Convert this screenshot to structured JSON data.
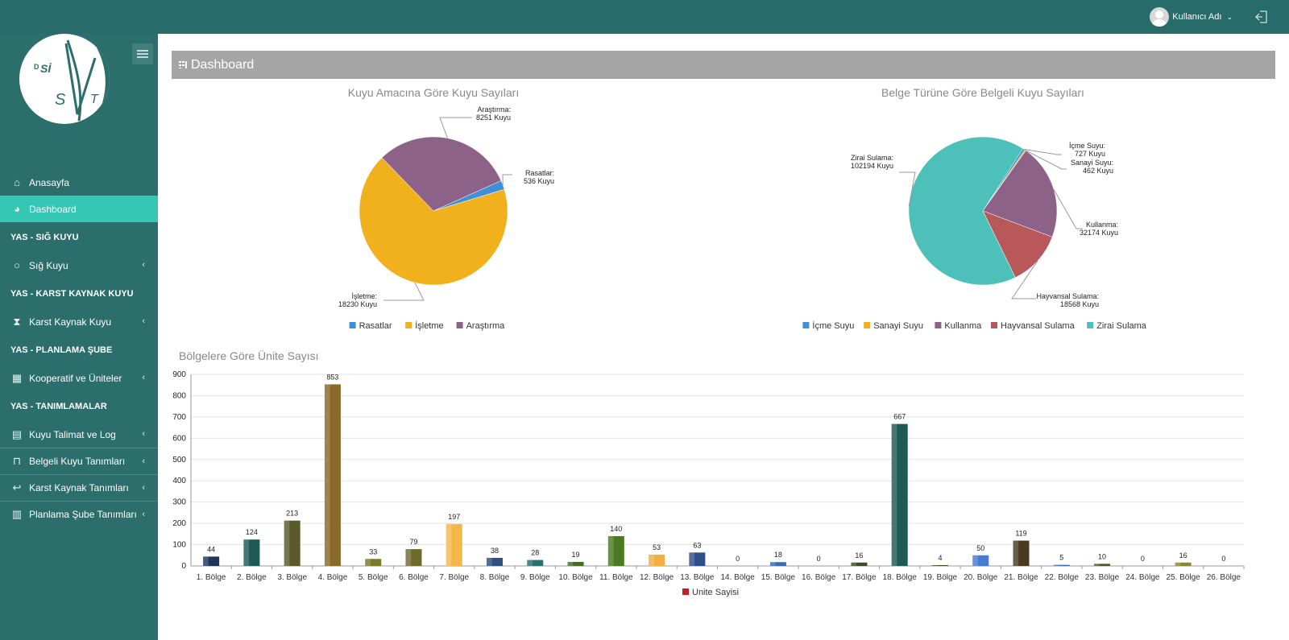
{
  "header": {
    "user_name": "Kullanıcı Adı",
    "user_chevron": "⌄",
    "logo_text": "DSİ SVT"
  },
  "sidebar": {
    "items": [
      {
        "label": "Anasayfa",
        "icon": "home-icon",
        "type": "item"
      },
      {
        "label": "Dashboard",
        "icon": "dashboard-icon",
        "type": "item",
        "active": true
      },
      {
        "label": "YAS - SIĞ KUYU",
        "type": "header"
      },
      {
        "label": "Sığ Kuyu",
        "icon": "circle-icon",
        "type": "item",
        "expandable": true
      },
      {
        "label": "YAS - KARST KAYNAK KUYU",
        "type": "header"
      },
      {
        "label": "Karst Kaynak Kuyu",
        "icon": "hourglass-icon",
        "type": "item",
        "expandable": true
      },
      {
        "label": "YAS - PLANLAMA ŞUBE",
        "type": "header"
      },
      {
        "label": "Kooperatif ve Üniteler",
        "icon": "cubes-icon",
        "type": "item",
        "expandable": true
      },
      {
        "label": "YAS - TANIMLAMALAR",
        "type": "header"
      },
      {
        "label": "Kuyu Talimat ve Log",
        "icon": "file-icon",
        "type": "item",
        "expandable": true
      },
      {
        "label": "Belgeli Kuyu Tanımları",
        "icon": "bookmark-icon",
        "type": "item",
        "expandable": true
      },
      {
        "label": "Karst Kaynak Tanımları",
        "icon": "reply-icon",
        "type": "item",
        "expandable": true
      },
      {
        "label": "Planlama Şube Tanımları",
        "icon": "bar-chart-icon",
        "type": "item",
        "expandable": true
      }
    ],
    "arrow": "‹"
  },
  "page": {
    "title": "Dashboard"
  },
  "chart_data": [
    {
      "type": "pie",
      "title": "Kuyu Amacına Göre Kuyu Sayıları",
      "labels": [
        "Rasatlar",
        "İşletme",
        "Araştırma"
      ],
      "values": [
        536,
        18230,
        8251
      ],
      "unit": "Kuyu",
      "colors": [
        "#3f8fd6",
        "#f0b11c",
        "#8c6288"
      ],
      "legend": "bottom"
    },
    {
      "type": "pie",
      "title": "Belge Türüne Göre Belgeli Kuyu Sayıları",
      "labels": [
        "İçme Suyu",
        "Sanayi Suyu",
        "Kullanma",
        "Hayvansal Sulama",
        "Zirai Sulama"
      ],
      "values": [
        727,
        462,
        32174,
        18568,
        102194
      ],
      "unit": "Kuyu",
      "colors": [
        "#3f8fd6",
        "#f0b11c",
        "#8c6288",
        "#b9585a",
        "#4ec0ba"
      ],
      "legend": "bottom"
    },
    {
      "type": "bar",
      "title": "Bölgelere Göre Ünite Sayısı",
      "categories": [
        "1. Bölge",
        "2. Bölge",
        "3. Bölge",
        "4. Bölge",
        "5. Bölge",
        "6. Bölge",
        "7. Bölge",
        "8. Bölge",
        "9. Bölge",
        "10. Bölge",
        "11. Bölge",
        "12. Bölge",
        "13. Bölge",
        "14. Bölge",
        "15. Bölge",
        "16. Bölge",
        "17. Bölge",
        "18. Bölge",
        "19. Bölge",
        "20. Bölge",
        "21. Bölge",
        "22. Bölge",
        "23. Bölge",
        "24. Bölge",
        "25. Bölge",
        "26. Bölge"
      ],
      "series": [
        {
          "name": "Unite Sayisi",
          "values": [
            44,
            124,
            213,
            853,
            33,
            79,
            197,
            38,
            28,
            19,
            140,
            53,
            63,
            0,
            18,
            0,
            16,
            667,
            4,
            50,
            119,
            5,
            10,
            0,
            16,
            0
          ]
        }
      ],
      "bar_colors": [
        "#1f3659",
        "#1f5a55",
        "#5a5a2a",
        "#8a6a2a",
        "#7a7a2a",
        "#6e6a2e",
        "#f5b74a",
        "#2f4f7f",
        "#2a7070",
        "#4a6a2a",
        "#4a7a22",
        "#f0b040",
        "#2e4f8a",
        "#444444",
        "#3a6ab0",
        "#333333",
        "#3a4a2a",
        "#1f5a55",
        "#4a4a2a",
        "#4a7ad0",
        "#4a3a22",
        "#3a6ab0",
        "#4a5a2a",
        "#444444",
        "#8a8a2a",
        "#333333"
      ],
      "ylim": [
        0,
        900
      ],
      "yticks": [
        0,
        100,
        200,
        300,
        400,
        500,
        600,
        700,
        800,
        900
      ],
      "legend": "bottom",
      "legend_color": "#c0202a"
    }
  ]
}
